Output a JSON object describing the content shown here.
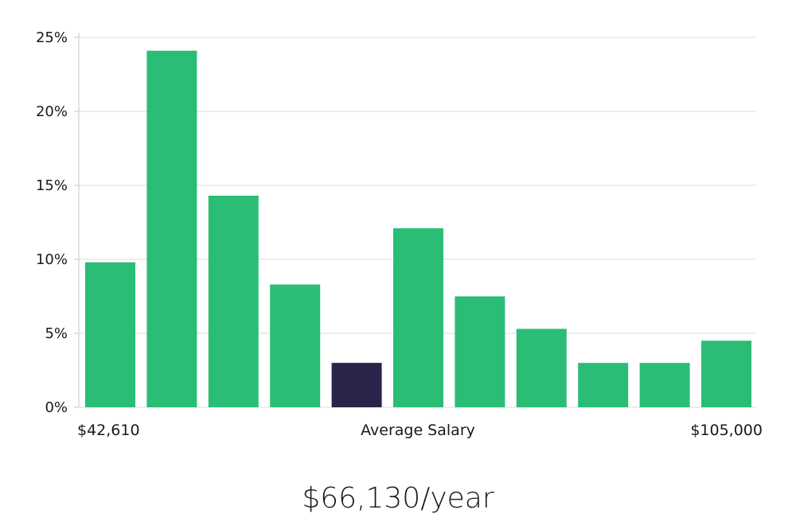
{
  "chart_data": {
    "type": "bar",
    "values": [
      9.8,
      24.1,
      14.3,
      8.3,
      3.0,
      12.1,
      7.5,
      5.3,
      3.0,
      3.0,
      4.5
    ],
    "highlight_index": 4,
    "bar_color": "#2bbd76",
    "highlight_color": "#28244a",
    "ylim": [
      0,
      25
    ],
    "yticks": [
      0,
      5,
      10,
      15,
      20,
      25
    ],
    "ytick_suffix": "%",
    "x_min_label": "$42,610",
    "x_center_label": "Average Salary",
    "x_max_label": "$105,000"
  },
  "summary": {
    "average_salary": "$66,130/year"
  }
}
